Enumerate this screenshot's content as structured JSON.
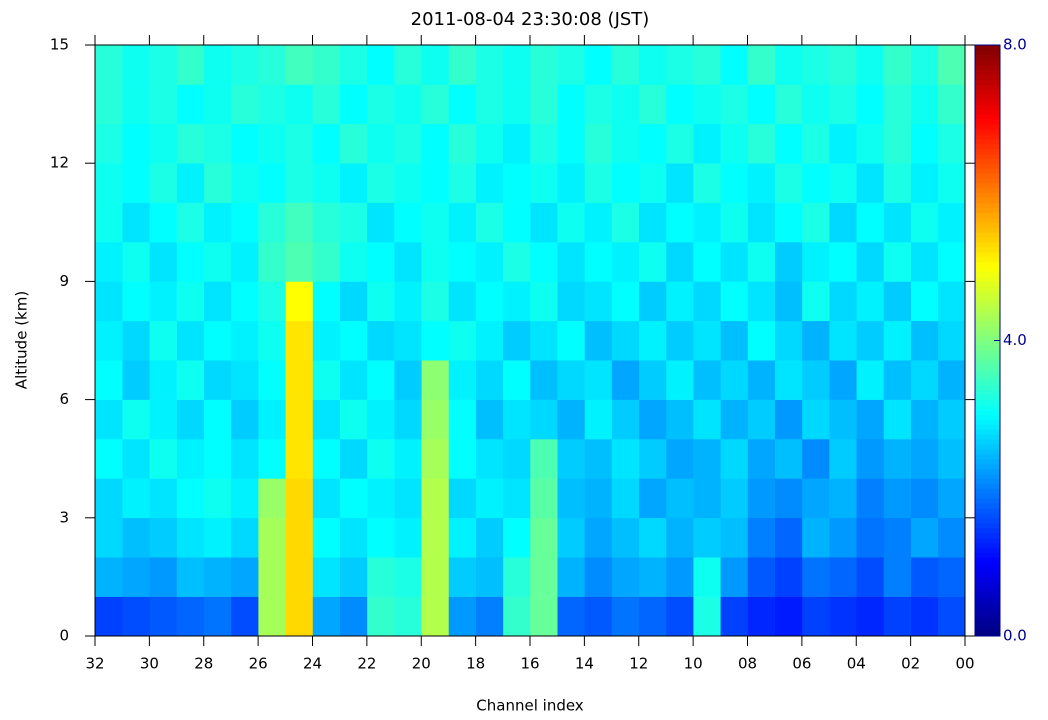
{
  "chart_data": {
    "type": "heatmap",
    "title": "2011-08-04 23:30:08 (JST)",
    "x_label": "Channel index",
    "y_label": "Altitude (km)",
    "x": [
      0,
      1,
      2,
      3,
      4,
      5,
      6,
      7,
      8,
      9,
      10,
      11,
      12,
      13,
      14,
      15,
      16,
      17,
      18,
      19,
      20,
      21,
      22,
      23,
      24,
      25,
      26,
      27,
      28,
      29,
      30,
      31
    ],
    "y_bins": [
      0,
      1,
      2,
      3,
      4,
      5,
      6,
      7,
      8,
      9,
      10,
      11,
      12,
      13,
      14,
      15
    ],
    "xlim": [
      32,
      0
    ],
    "ylim": [
      0,
      15
    ],
    "xticks": [
      32,
      30,
      28,
      26,
      24,
      22,
      20,
      18,
      16,
      14,
      12,
      10,
      {
        "value": 8,
        "label": "08"
      },
      {
        "value": 6,
        "label": "06"
      },
      {
        "value": 4,
        "label": "04"
      },
      {
        "value": 2,
        "label": "02"
      },
      {
        "value": 0,
        "label": "00"
      }
    ],
    "yticks": [
      0,
      3,
      6,
      9,
      12,
      15
    ],
    "colormap": "jet",
    "zlim": [
      0,
      8
    ],
    "zticks": [
      {
        "value": 0,
        "label": "0.0"
      },
      {
        "value": 4,
        "label": "4.0"
      },
      {
        "value": 8,
        "label": "8.0"
      }
    ],
    "z": [
      [
        1.6,
        1.4,
        1.5,
        1.3,
        1.4,
        1.5,
        1.2,
        1.3,
        1.5,
        3.2,
        1.6,
        1.8,
        1.9,
        1.7,
        1.8,
        3.8,
        3.4,
        2.0,
        2.2,
        4.4,
        3.3,
        3.4,
        2.1,
        2.3,
        5.3,
        4.3,
        1.6,
        1.9,
        1.8,
        1.7,
        1.6,
        1.5
      ],
      [
        1.8,
        1.7,
        2.0,
        1.6,
        1.8,
        1.9,
        1.5,
        1.7,
        2.2,
        3.1,
        2.2,
        2.4,
        2.3,
        2.1,
        2.4,
        3.8,
        3.3,
        2.5,
        2.6,
        4.4,
        3.2,
        3.3,
        2.6,
        2.8,
        5.3,
        4.3,
        2.3,
        2.4,
        2.5,
        2.2,
        2.3,
        2.4
      ],
      [
        2.1,
        2.3,
        2.0,
        1.9,
        2.2,
        2.4,
        1.8,
        2.0,
        2.5,
        2.6,
        2.4,
        2.7,
        2.5,
        2.3,
        2.6,
        3.8,
        3.0,
        2.6,
        2.9,
        4.4,
        2.9,
        3.0,
        2.8,
        3.0,
        5.3,
        4.3,
        2.7,
        2.9,
        2.8,
        2.6,
        2.5,
        2.7
      ],
      [
        2.3,
        2.1,
        2.2,
        2.0,
        2.4,
        2.3,
        2.1,
        2.2,
        2.6,
        2.4,
        2.5,
        2.3,
        2.7,
        2.4,
        2.5,
        3.7,
        2.8,
        2.9,
        2.7,
        4.4,
        2.8,
        2.9,
        3.0,
        2.8,
        5.3,
        4.2,
        2.9,
        3.1,
        3.0,
        2.8,
        2.9,
        2.7
      ],
      [
        2.5,
        2.3,
        2.4,
        2.2,
        2.6,
        2.1,
        2.5,
        2.3,
        2.7,
        2.4,
        2.3,
        2.6,
        2.8,
        2.5,
        2.6,
        3.6,
        2.7,
        2.8,
        3.0,
        4.3,
        2.9,
        3.1,
        2.7,
        3.0,
        5.2,
        3.0,
        2.8,
        3.0,
        2.9,
        3.1,
        2.8,
        3.0
      ],
      [
        2.6,
        2.4,
        2.8,
        2.3,
        2.5,
        2.7,
        2.2,
        2.6,
        2.4,
        2.8,
        2.5,
        2.3,
        2.6,
        2.9,
        2.4,
        2.7,
        2.8,
        2.5,
        3.0,
        4.2,
        2.7,
        2.9,
        3.1,
        2.8,
        5.2,
        2.9,
        2.6,
        3.0,
        2.7,
        2.9,
        3.1,
        2.8
      ],
      [
        2.4,
        2.7,
        2.5,
        2.9,
        2.3,
        2.6,
        2.8,
        2.4,
        2.7,
        2.5,
        2.9,
        2.6,
        2.3,
        2.8,
        2.7,
        2.5,
        3.0,
        2.7,
        2.9,
        4.1,
        2.6,
        3.0,
        2.8,
        3.1,
        5.2,
        3.0,
        2.8,
        2.7,
        3.1,
        2.9,
        2.6,
        3.0
      ],
      [
        2.7,
        2.5,
        2.9,
        2.6,
        2.8,
        2.4,
        2.7,
        3.0,
        2.5,
        2.8,
        2.6,
        2.9,
        2.7,
        2.5,
        3.0,
        2.8,
        2.6,
        2.9,
        3.1,
        3.0,
        2.8,
        2.7,
        3.0,
        2.9,
        5.2,
        3.1,
        2.9,
        3.0,
        2.8,
        3.1,
        2.7,
        2.9
      ],
      [
        2.8,
        3.0,
        2.6,
        2.9,
        2.7,
        3.1,
        2.5,
        2.8,
        3.0,
        2.7,
        2.9,
        2.6,
        3.0,
        2.8,
        2.7,
        3.1,
        2.9,
        3.0,
        2.8,
        3.2,
        2.9,
        3.1,
        2.7,
        3.0,
        5.0,
        3.2,
        3.0,
        2.8,
        3.1,
        2.9,
        3.0,
        2.8
      ],
      [
        3.0,
        2.8,
        3.1,
        2.7,
        3.0,
        2.9,
        2.6,
        3.1,
        2.8,
        3.0,
        2.7,
        3.1,
        2.9,
        3.0,
        2.8,
        3.0,
        3.2,
        2.9,
        3.0,
        3.1,
        2.8,
        3.0,
        3.1,
        3.4,
        3.6,
        3.4,
        2.9,
        3.1,
        3.0,
        2.8,
        3.1,
        2.9
      ],
      [
        2.9,
        3.1,
        2.8,
        3.0,
        2.7,
        3.2,
        3.0,
        2.8,
        3.1,
        2.9,
        3.0,
        2.8,
        3.2,
        2.9,
        3.1,
        2.8,
        3.0,
        3.2,
        2.9,
        3.1,
        3.0,
        2.8,
        3.2,
        3.3,
        3.5,
        3.3,
        3.0,
        2.9,
        3.2,
        3.0,
        2.8,
        3.1
      ],
      [
        3.1,
        2.9,
        3.2,
        2.8,
        3.1,
        3.0,
        3.2,
        2.9,
        3.0,
        3.2,
        2.8,
        3.1,
        3.0,
        3.2,
        2.9,
        3.1,
        3.0,
        2.9,
        3.2,
        3.0,
        3.1,
        3.2,
        2.9,
        3.1,
        3.2,
        3.0,
        3.1,
        3.3,
        2.9,
        3.2,
        3.0,
        3.1
      ],
      [
        3.2,
        3.0,
        3.3,
        3.1,
        2.9,
        3.2,
        3.0,
        3.3,
        3.1,
        2.9,
        3.2,
        3.0,
        3.1,
        3.3,
        3.0,
        3.2,
        2.9,
        3.1,
        3.3,
        3.0,
        3.2,
        3.1,
        3.3,
        3.0,
        3.2,
        3.1,
        3.0,
        3.2,
        3.3,
        3.1,
        3.0,
        3.2
      ],
      [
        3.4,
        3.1,
        3.3,
        3.0,
        3.2,
        3.1,
        3.3,
        3.0,
        3.2,
        3.1,
        3.0,
        3.3,
        3.1,
        3.2,
        3.0,
        3.3,
        3.1,
        3.2,
        3.0,
        3.3,
        3.1,
        3.2,
        3.0,
        3.3,
        3.1,
        3.2,
        3.3,
        3.1,
        3.0,
        3.2,
        3.1,
        3.3
      ],
      [
        3.6,
        3.2,
        3.4,
        3.1,
        3.3,
        3.2,
        3.1,
        3.4,
        3.0,
        3.3,
        3.2,
        3.1,
        3.3,
        3.0,
        3.2,
        3.3,
        3.1,
        3.2,
        3.4,
        3.1,
        3.3,
        3.0,
        3.2,
        3.4,
        3.5,
        3.3,
        3.2,
        3.1,
        3.4,
        3.2,
        3.1,
        3.3
      ]
    ]
  }
}
